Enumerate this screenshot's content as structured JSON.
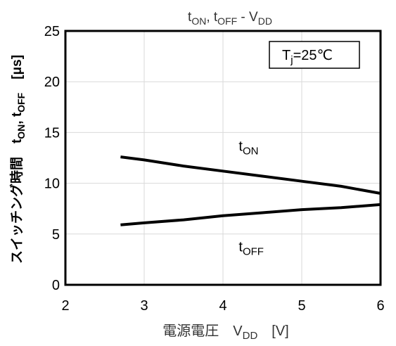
{
  "chart_data": {
    "type": "line",
    "title": {
      "parts": [
        {
          "text": "t",
          "sub": "ON"
        },
        {
          "text": ", t",
          "sub": "OFF"
        },
        {
          "text": " - V",
          "sub": "DD"
        }
      ]
    },
    "xlabel": {
      "parts": [
        {
          "text": "電源電圧　V",
          "sub": "DD"
        },
        {
          "text": "　[V]",
          "sub": ""
        }
      ]
    },
    "ylabel": {
      "parts": [
        {
          "text": "スイッチング時間　t",
          "sub": "ON"
        },
        {
          "text": ", t",
          "sub": "OFF"
        },
        {
          "text": "　[μs]",
          "sub": ""
        }
      ]
    },
    "annotation": {
      "parts": [
        {
          "text": "T",
          "sub": "j"
        },
        {
          "text": "=25℃",
          "sub": ""
        }
      ]
    },
    "xlim": [
      2,
      6
    ],
    "ylim": [
      0,
      25
    ],
    "xticks": [
      2,
      3,
      4,
      5,
      6
    ],
    "yticks": [
      0,
      5,
      10,
      15,
      20,
      25
    ],
    "grid": true,
    "line_color": "#000000",
    "grid_color": "#d9d9d9",
    "series": [
      {
        "name": "t",
        "name_sub": "ON",
        "label_pos": {
          "x": 4.2,
          "y": 13.2
        },
        "x": [
          2.7,
          3.0,
          3.5,
          4.0,
          4.5,
          5.0,
          5.5,
          6.0
        ],
        "y": [
          12.6,
          12.3,
          11.7,
          11.2,
          10.7,
          10.2,
          9.7,
          9.0
        ]
      },
      {
        "name": "t",
        "name_sub": "OFF",
        "label_pos": {
          "x": 4.2,
          "y": 3.3
        },
        "x": [
          2.7,
          3.0,
          3.5,
          4.0,
          4.5,
          5.0,
          5.5,
          6.0
        ],
        "y": [
          5.9,
          6.1,
          6.4,
          6.8,
          7.1,
          7.4,
          7.6,
          7.9
        ]
      }
    ]
  }
}
